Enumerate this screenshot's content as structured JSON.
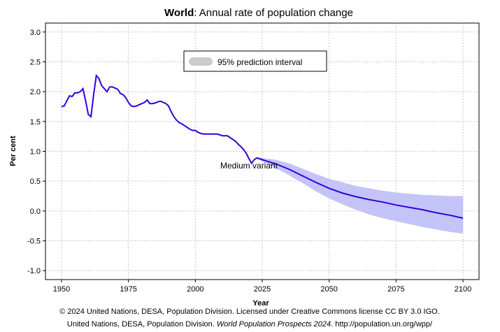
{
  "chart_data": {
    "type": "line",
    "title_region": "World",
    "title": ": Annual rate of population change",
    "x_label": "Year",
    "y_label": "Per cent",
    "xlim": [
      1944,
      2106
    ],
    "ylim": [
      -1.15,
      3.15
    ],
    "xticks": [
      1950,
      1975,
      2000,
      2025,
      2050,
      2075,
      2100
    ],
    "yticks": [
      {
        "value": 3,
        "label": "3.0"
      },
      2.5,
      {
        "value": 2,
        "label": "2.0"
      },
      1.5,
      {
        "value": 1,
        "label": "1.0"
      },
      0.5,
      {
        "value": 0,
        "label": "0.0"
      },
      -0.5,
      {
        "value": -1,
        "label": "-1.0"
      }
    ],
    "grid": true,
    "x": [
      1950,
      1951,
      1952,
      1953,
      1954,
      1955,
      1956,
      1957,
      1958,
      1959,
      1960,
      1961,
      1962,
      1963,
      1964,
      1965,
      1966,
      1967,
      1968,
      1969,
      1970,
      1971,
      1972,
      1973,
      1974,
      1975,
      1976,
      1977,
      1978,
      1979,
      1980,
      1981,
      1982,
      1983,
      1984,
      1985,
      1986,
      1987,
      1988,
      1989,
      1990,
      1991,
      1992,
      1993,
      1994,
      1995,
      1996,
      1997,
      1998,
      1999,
      2000,
      2001,
      2002,
      2003,
      2004,
      2005,
      2006,
      2007,
      2008,
      2009,
      2010,
      2011,
      2012,
      2013,
      2014,
      2015,
      2016,
      2017,
      2018,
      2019,
      2020,
      2021,
      2022,
      2023,
      2025,
      2030,
      2035,
      2040,
      2045,
      2050,
      2055,
      2060,
      2065,
      2070,
      2075,
      2080,
      2085,
      2090,
      2095,
      2100
    ],
    "series": [
      {
        "name": "Medium variant",
        "color": "#3300dd",
        "values": [
          1.75,
          1.76,
          1.85,
          1.93,
          1.92,
          1.98,
          1.98,
          2.0,
          2.05,
          1.85,
          1.62,
          1.58,
          1.95,
          2.27,
          2.22,
          2.1,
          2.05,
          2.0,
          2.08,
          2.08,
          2.06,
          2.04,
          1.97,
          1.95,
          1.9,
          1.82,
          1.76,
          1.75,
          1.76,
          1.78,
          1.8,
          1.82,
          1.86,
          1.8,
          1.8,
          1.81,
          1.83,
          1.84,
          1.82,
          1.8,
          1.76,
          1.66,
          1.58,
          1.52,
          1.48,
          1.46,
          1.43,
          1.4,
          1.37,
          1.35,
          1.35,
          1.32,
          1.3,
          1.29,
          1.29,
          1.29,
          1.29,
          1.29,
          1.29,
          1.28,
          1.26,
          1.26,
          1.26,
          1.23,
          1.2,
          1.17,
          1.12,
          1.08,
          1.03,
          0.97,
          0.88,
          0.8,
          0.86,
          0.89,
          0.86,
          0.79,
          0.7,
          0.59,
          0.48,
          0.38,
          0.3,
          0.24,
          0.19,
          0.15,
          0.1,
          0.06,
          0.02,
          -0.03,
          -0.07,
          -0.12
        ]
      }
    ],
    "interval": {
      "name": "95% prediction interval",
      "color": "#c4c4f8",
      "legend_color": "#cccccc",
      "x": [
        2023,
        2025,
        2030,
        2035,
        2040,
        2045,
        2050,
        2055,
        2060,
        2065,
        2070,
        2075,
        2080,
        2085,
        2090,
        2095,
        2100
      ],
      "lower": [
        0.88,
        0.83,
        0.72,
        0.6,
        0.47,
        0.33,
        0.21,
        0.11,
        0.02,
        -0.06,
        -0.12,
        -0.17,
        -0.22,
        -0.27,
        -0.31,
        -0.35,
        -0.38
      ],
      "upper": [
        0.9,
        0.89,
        0.86,
        0.8,
        0.71,
        0.62,
        0.54,
        0.48,
        0.42,
        0.38,
        0.34,
        0.31,
        0.29,
        0.27,
        0.26,
        0.25,
        0.25
      ]
    },
    "source_line1": "© 2024 United Nations, DESA, Population Division. Licensed under Creative Commons license CC BY 3.0 IGO.",
    "source_line2_a": "United Nations, DESA, Population Division. ",
    "source_line2_b": "World Population Prospects 2024",
    "source_line2_c": ". http://population.un.org/wpp/"
  }
}
